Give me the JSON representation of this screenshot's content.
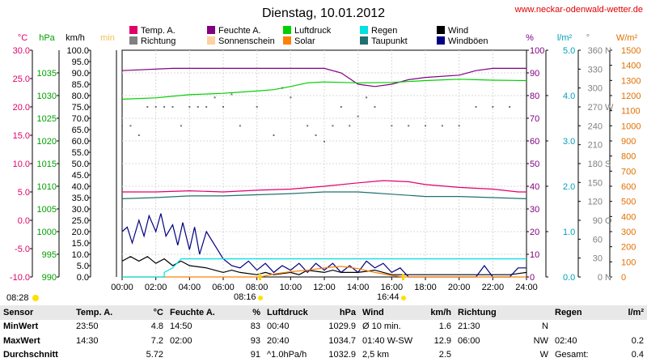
{
  "chart_data": {
    "type": "line",
    "title": "Dienstag, 10.01.2012",
    "site": "www.neckar-odenwald-wetter.de",
    "x_ticks": [
      "00:00",
      "02:00",
      "04:00",
      "06:00",
      "08:00",
      "10:00",
      "12:00",
      "14:00",
      "16:00",
      "18:00",
      "20:00",
      "22:00",
      "24:00"
    ],
    "xlim": [
      0,
      24
    ],
    "sunrise": "08:16",
    "sunset": "16:44",
    "daylength": "08:28",
    "axes": {
      "temp": {
        "unit": "°C",
        "range": [
          -10,
          30
        ],
        "ticks": [
          "-10.0",
          "-5.0",
          "0.0",
          "5.0",
          "10.0",
          "15.0",
          "20.0",
          "25.0",
          "30.0"
        ],
        "color": "#e0006a"
      },
      "pressure": {
        "unit": "hPa",
        "range": [
          990,
          1040
        ],
        "ticks": [
          "990",
          "995",
          "1000",
          "1005",
          "1010",
          "1015",
          "1020",
          "1025",
          "1030",
          "1035"
        ],
        "color": "#00b000"
      },
      "wind": {
        "unit": "km/h",
        "range": [
          0,
          100
        ],
        "ticks": [
          "0.0",
          "5.0",
          "10.0",
          "15.0",
          "20.0",
          "25.0",
          "30.0",
          "35.0",
          "40.0",
          "45.0",
          "50.0",
          "55.0",
          "60.0",
          "65.0",
          "70.0",
          "75.0",
          "80.0",
          "85.0",
          "90.0",
          "95.0",
          "100.0"
        ],
        "color": "#000000"
      },
      "sunshine": {
        "unit": "min",
        "color": "#f0c050"
      },
      "humidity": {
        "unit": "%",
        "range": [
          0,
          100
        ],
        "ticks": [
          "0",
          "10",
          "20",
          "30",
          "40",
          "50",
          "60",
          "70",
          "80",
          "90",
          "100"
        ],
        "color": "#800080"
      },
      "rain": {
        "unit": "l/m²",
        "range": [
          0,
          5
        ],
        "ticks": [
          "0.0",
          "1.0",
          "2.0",
          "3.0",
          "4.0",
          "5.0"
        ],
        "color": "#00a0c0"
      },
      "direction": {
        "unit": "°",
        "range": [
          0,
          360
        ],
        "ticks": [
          "0",
          "30",
          "60",
          "90",
          "120",
          "150",
          "180",
          "210",
          "240",
          "270",
          "300",
          "330",
          "360"
        ],
        "labels": {
          "0": "N",
          "90": "O",
          "180": "S",
          "270": "W",
          "360": "N"
        },
        "color": "#808080"
      },
      "solar": {
        "unit": "W/m²",
        "range": [
          0,
          1500
        ],
        "ticks": [
          "0",
          "100",
          "200",
          "300",
          "400",
          "500",
          "600",
          "700",
          "800",
          "900",
          "1000",
          "1100",
          "1200",
          "1300",
          "1400",
          "1500"
        ],
        "color": "#e07000"
      }
    },
    "legend": [
      {
        "name": "Temp. A.",
        "color": "#e0006a"
      },
      {
        "name": "Feuchte A.",
        "color": "#800080"
      },
      {
        "name": "Luftdruck",
        "color": "#00d000"
      },
      {
        "name": "Regen",
        "color": "#00e0e0"
      },
      {
        "name": "Wind",
        "color": "#000000"
      },
      {
        "name": "Richtung",
        "color": "#808080"
      },
      {
        "name": "Sonnenschein",
        "color": "#ffd0a0"
      },
      {
        "name": "Solar",
        "color": "#ff8000"
      },
      {
        "name": "Taupunkt",
        "color": "#207070"
      },
      {
        "name": "Windböen",
        "color": "#000080"
      }
    ],
    "series": [
      {
        "name": "Temp. A.",
        "axis": "temp",
        "color": "#e0006a",
        "points": [
          [
            0,
            5.0
          ],
          [
            2,
            5.0
          ],
          [
            4,
            5.2
          ],
          [
            6,
            5.0
          ],
          [
            8,
            5.3
          ],
          [
            10,
            5.5
          ],
          [
            12,
            6.0
          ],
          [
            14,
            6.6
          ],
          [
            15.5,
            7.0
          ],
          [
            17,
            6.8
          ],
          [
            18,
            6.3
          ],
          [
            20,
            5.8
          ],
          [
            22,
            5.5
          ],
          [
            23.5,
            5.0
          ],
          [
            24,
            5.0
          ]
        ]
      },
      {
        "name": "Taupunkt",
        "axis": "temp",
        "color": "#207070",
        "points": [
          [
            0,
            3.8
          ],
          [
            2,
            4.0
          ],
          [
            4,
            4.3
          ],
          [
            6,
            4.3
          ],
          [
            8,
            4.5
          ],
          [
            10,
            4.7
          ],
          [
            12,
            5.0
          ],
          [
            14,
            5.0
          ],
          [
            15,
            4.8
          ],
          [
            16,
            4.6
          ],
          [
            18,
            4.2
          ],
          [
            20,
            4.2
          ],
          [
            22,
            4.0
          ],
          [
            24,
            3.8
          ]
        ]
      },
      {
        "name": "Feuchte A.",
        "axis": "humidity",
        "color": "#800080",
        "points": [
          [
            0,
            91
          ],
          [
            3,
            92
          ],
          [
            6,
            92
          ],
          [
            8,
            92
          ],
          [
            10,
            92
          ],
          [
            12,
            92
          ],
          [
            13,
            90
          ],
          [
            14,
            85
          ],
          [
            15,
            84
          ],
          [
            16,
            85
          ],
          [
            17,
            87
          ],
          [
            18,
            88
          ],
          [
            20,
            89
          ],
          [
            21,
            91
          ],
          [
            22,
            92
          ],
          [
            23,
            92
          ],
          [
            24,
            92
          ]
        ]
      },
      {
        "name": "Luftdruck",
        "axis": "pressure",
        "color": "#00d000",
        "points": [
          [
            0,
            1029.2
          ],
          [
            2,
            1029.5
          ],
          [
            4,
            1030.2
          ],
          [
            6,
            1030.5
          ],
          [
            8,
            1031.0
          ],
          [
            9,
            1031.3
          ],
          [
            10,
            1032.0
          ],
          [
            11,
            1032.8
          ],
          [
            12,
            1033.0
          ],
          [
            14,
            1032.8
          ],
          [
            16,
            1032.9
          ],
          [
            18,
            1033.3
          ],
          [
            20,
            1033.6
          ],
          [
            22,
            1033.4
          ],
          [
            24,
            1033.3
          ]
        ]
      },
      {
        "name": "Wind",
        "axis": "wind",
        "color": "#000000",
        "points": [
          [
            0,
            7
          ],
          [
            0.5,
            9
          ],
          [
            1,
            7
          ],
          [
            1.5,
            9
          ],
          [
            2,
            6
          ],
          [
            2.5,
            8
          ],
          [
            3,
            5
          ],
          [
            3.5,
            7
          ],
          [
            4,
            5
          ],
          [
            5,
            4
          ],
          [
            6,
            2
          ],
          [
            6.5,
            3
          ],
          [
            7,
            2
          ],
          [
            8,
            1
          ],
          [
            8.5,
            2
          ],
          [
            9,
            1
          ],
          [
            10,
            2
          ],
          [
            10.5,
            1
          ],
          [
            11,
            3
          ],
          [
            12,
            2
          ],
          [
            12.5,
            3
          ],
          [
            13,
            2
          ],
          [
            14,
            2
          ],
          [
            15,
            3
          ],
          [
            16,
            1
          ],
          [
            17,
            1
          ],
          [
            18,
            1
          ],
          [
            19,
            1
          ],
          [
            20,
            1
          ],
          [
            21,
            1
          ],
          [
            22,
            1
          ],
          [
            23,
            1
          ],
          [
            24,
            2
          ]
        ]
      },
      {
        "name": "Windböen",
        "axis": "wind",
        "color": "#000080",
        "points": [
          [
            0,
            20
          ],
          [
            0.3,
            22
          ],
          [
            0.6,
            15
          ],
          [
            1,
            25
          ],
          [
            1.3,
            18
          ],
          [
            1.6,
            27
          ],
          [
            2,
            20
          ],
          [
            2.3,
            28
          ],
          [
            2.6,
            18
          ],
          [
            3,
            23
          ],
          [
            3.3,
            14
          ],
          [
            3.6,
            24
          ],
          [
            4,
            12
          ],
          [
            4.3,
            22
          ],
          [
            4.6,
            10
          ],
          [
            5,
            20
          ],
          [
            5.5,
            14
          ],
          [
            6,
            8
          ],
          [
            6.5,
            5
          ],
          [
            7,
            4
          ],
          [
            7.5,
            7
          ],
          [
            8,
            3
          ],
          [
            8.5,
            6
          ],
          [
            9,
            2
          ],
          [
            9.5,
            5
          ],
          [
            10,
            3
          ],
          [
            10.5,
            6
          ],
          [
            11,
            2
          ],
          [
            11.5,
            6
          ],
          [
            12,
            3
          ],
          [
            12.5,
            6
          ],
          [
            13,
            2
          ],
          [
            13.5,
            5
          ],
          [
            14,
            2
          ],
          [
            14.5,
            7
          ],
          [
            15,
            4
          ],
          [
            15.5,
            6
          ],
          [
            16,
            2
          ],
          [
            16.5,
            4
          ],
          [
            17,
            0
          ],
          [
            18,
            0
          ],
          [
            19,
            0
          ],
          [
            20,
            0
          ],
          [
            21,
            0
          ],
          [
            21.5,
            5
          ],
          [
            22,
            0
          ],
          [
            23,
            0
          ],
          [
            23.5,
            4
          ],
          [
            24,
            4
          ]
        ]
      },
      {
        "name": "Solar",
        "axis": "solar",
        "color": "#ff8000",
        "points": [
          [
            0,
            0
          ],
          [
            8.2,
            0
          ],
          [
            9,
            20
          ],
          [
            10,
            35
          ],
          [
            11,
            45
          ],
          [
            12,
            60
          ],
          [
            13,
            70
          ],
          [
            14,
            55
          ],
          [
            15,
            30
          ],
          [
            16,
            10
          ],
          [
            16.7,
            0
          ],
          [
            24,
            0
          ]
        ]
      },
      {
        "name": "Regen",
        "axis": "rain",
        "color": "#00e0e0",
        "points": [
          [
            0,
            0
          ],
          [
            2.5,
            0
          ],
          [
            2.5,
            0.1
          ],
          [
            3,
            0.2
          ],
          [
            3.5,
            0.4
          ],
          [
            24,
            0.4
          ]
        ]
      }
    ],
    "direction_points": [
      [
        0,
        240
      ],
      [
        0.5,
        240
      ],
      [
        1,
        225
      ],
      [
        1.5,
        270
      ],
      [
        2,
        270
      ],
      [
        2.5,
        270
      ],
      [
        3,
        270
      ],
      [
        3.5,
        240
      ],
      [
        4,
        270
      ],
      [
        4.5,
        270
      ],
      [
        5,
        270
      ],
      [
        5.5,
        285
      ],
      [
        6,
        270
      ],
      [
        6.5,
        290
      ],
      [
        7,
        240
      ],
      [
        8,
        270
      ],
      [
        9,
        225
      ],
      [
        9.5,
        300
      ],
      [
        10,
        285
      ],
      [
        11,
        240
      ],
      [
        11.5,
        225
      ],
      [
        12,
        215
      ],
      [
        12.5,
        240
      ],
      [
        13,
        270
      ],
      [
        13.5,
        240
      ],
      [
        14,
        255
      ],
      [
        14.5,
        285
      ],
      [
        15,
        270
      ],
      [
        16,
        240
      ],
      [
        17,
        240
      ],
      [
        18,
        240
      ],
      [
        19,
        240
      ],
      [
        20,
        240
      ],
      [
        21,
        270
      ],
      [
        22,
        270
      ],
      [
        23,
        270
      ]
    ]
  },
  "stats": {
    "header": [
      "Sensor",
      "Temp. A.",
      "°C",
      "Feuchte A.",
      "%",
      "Luftdruck",
      "hPa",
      "Wind",
      "km/h",
      "Richtung",
      "",
      "Regen",
      "l/m²"
    ],
    "rows": [
      [
        "MinWert",
        "23:50",
        "4.8",
        "14:50",
        "83",
        "00:40",
        "1029.9",
        "Ø 10 min.",
        "1.6",
        "21:30",
        "N",
        "",
        ""
      ],
      [
        "MaxWert",
        "14:30",
        "7.2",
        "02:00",
        "93",
        "20:40",
        "1034.7",
        "01:40  W-SW",
        "12.9",
        "06:00",
        "NW",
        "02:40",
        "0.2"
      ],
      [
        "Durchschnitt",
        "",
        "5.72",
        "",
        "91",
        "^1.0hPa/h",
        "1032.9",
        "2,5 km",
        "2.5",
        "",
        "W",
        "Gesamt:",
        "0.4"
      ]
    ]
  }
}
